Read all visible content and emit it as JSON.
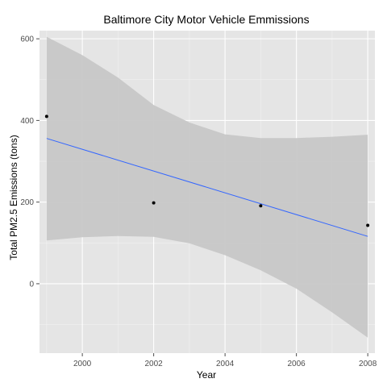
{
  "chart_data": {
    "type": "scatter",
    "title": "Baltimore City Motor Vehicle Emmissions",
    "xlabel": "Year",
    "ylabel": "Total PM2.5 Emissions (tons)",
    "xlim": [
      1998.8,
      2008.2
    ],
    "ylim": [
      -170,
      620
    ],
    "x_ticks": [
      2000,
      2002,
      2004,
      2006,
      2008
    ],
    "y_ticks": [
      0,
      200,
      400,
      600
    ],
    "grid": true,
    "legend": "none",
    "points": [
      {
        "x": 1999,
        "y": 410
      },
      {
        "x": 2002,
        "y": 198
      },
      {
        "x": 2005,
        "y": 191
      },
      {
        "x": 2008,
        "y": 143
      }
    ],
    "fit_line": [
      {
        "x": 1999,
        "y": 356
      },
      {
        "x": 2008,
        "y": 116
      }
    ],
    "confidence_band": [
      {
        "x": 1999,
        "low": 106,
        "high": 605
      },
      {
        "x": 2000,
        "low": 114,
        "high": 560
      },
      {
        "x": 2001,
        "low": 117,
        "high": 505
      },
      {
        "x": 2002,
        "low": 115,
        "high": 438
      },
      {
        "x": 2003,
        "low": 99,
        "high": 395
      },
      {
        "x": 2004,
        "low": 70,
        "high": 366
      },
      {
        "x": 2005,
        "low": 33,
        "high": 357
      },
      {
        "x": 2006,
        "low": -12,
        "high": 357
      },
      {
        "x": 2007,
        "low": -70,
        "high": 360
      },
      {
        "x": 2008,
        "low": -132,
        "high": 365
      }
    ],
    "colors": {
      "panel": "#e5e5e5",
      "grid_major": "#ffffff",
      "grid_minor": "#f2f2f2",
      "band": "#c7c7c7",
      "line": "#3366ff",
      "point": "#000000",
      "tick": "#4d4d4d"
    }
  }
}
